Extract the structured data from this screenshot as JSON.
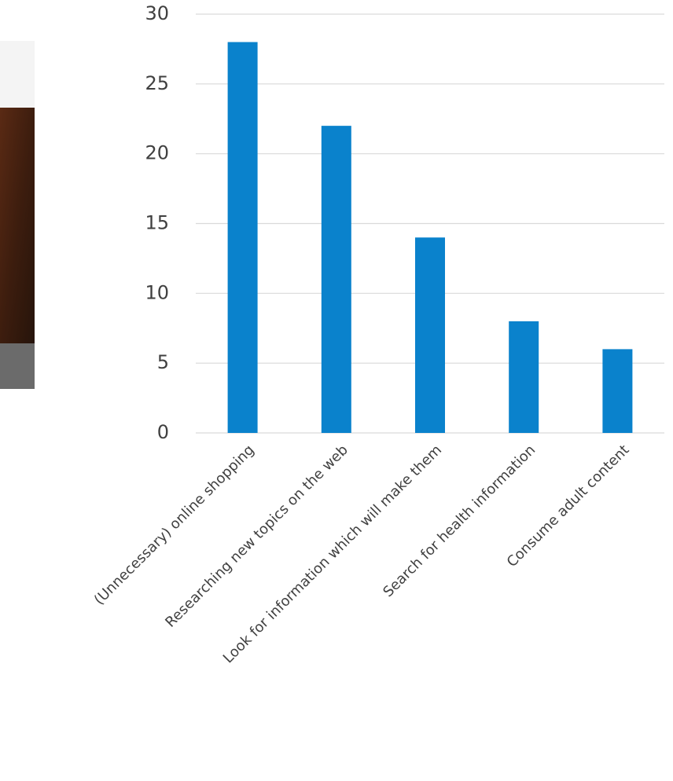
{
  "chart_data": {
    "type": "bar",
    "categories": [
      "(Unnecessary) online shopping",
      "Researching new topics on the web",
      "Look for information which will make them",
      "Search for health information",
      "Consume adult content"
    ],
    "values": [
      28,
      22,
      14,
      8,
      6
    ],
    "color": "#0a82cc",
    "ylim": [
      0,
      30
    ],
    "yticks": [
      0,
      5,
      10,
      15,
      20,
      25,
      30
    ],
    "grid": true
  }
}
